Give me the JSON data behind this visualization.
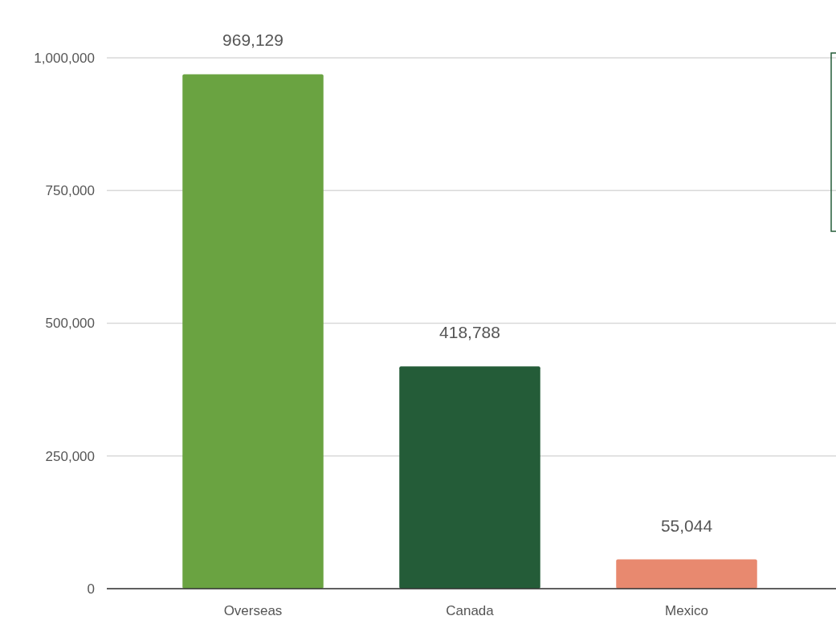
{
  "chart_data": {
    "type": "bar",
    "categories": [
      "Overseas",
      "Canada",
      "Mexico"
    ],
    "values": [
      969129,
      418788,
      55044
    ],
    "colors": [
      "#6aa341",
      "#245c38",
      "#e8896f"
    ],
    "ylim": [
      0,
      1000000
    ],
    "yticks": [
      {
        "value": 0,
        "label": "0"
      },
      {
        "value": 250000,
        "label": "250,000"
      },
      {
        "value": 500000,
        "label": "500,000"
      },
      {
        "value": 750000,
        "label": "750,000"
      },
      {
        "value": 1000000,
        "label": "1,000,000"
      }
    ],
    "value_labels": [
      "969,129",
      "418,788",
      "55,044"
    ],
    "grid": "y"
  }
}
